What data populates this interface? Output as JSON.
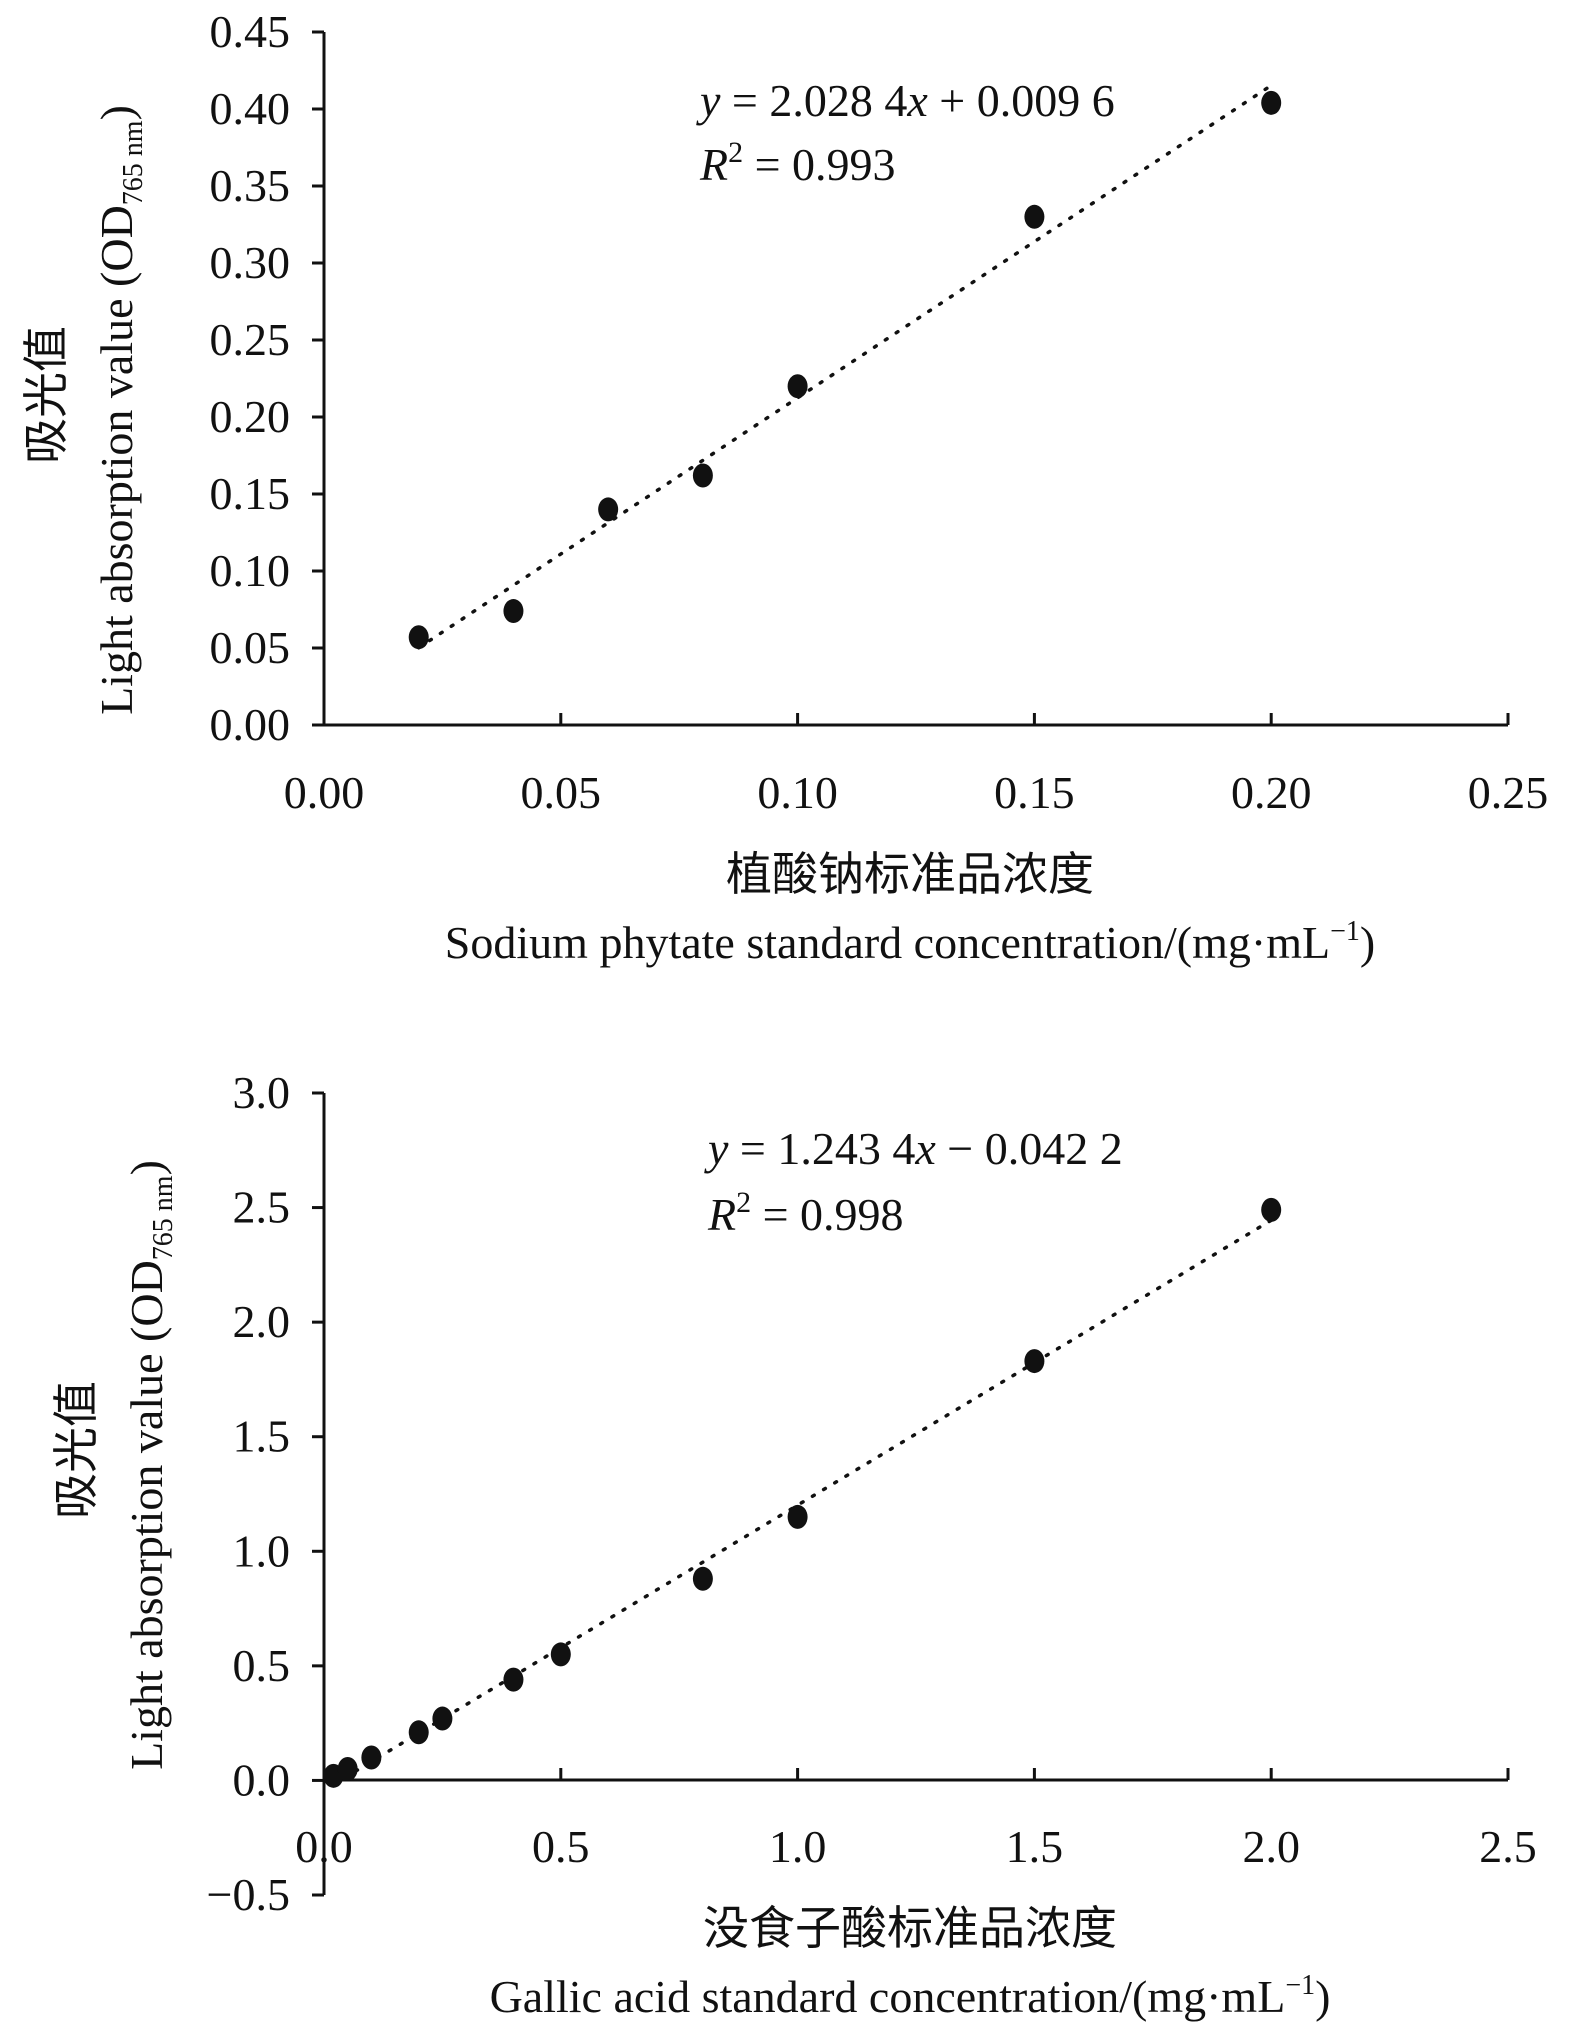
{
  "chart_data": [
    {
      "type": "scatter",
      "title": "",
      "ylabel_cn": "吸光值",
      "ylabel_en_main": "Light absorption value (OD",
      "ylabel_en_sub": "765 nm",
      "ylabel_en_close": ")",
      "xlabel_cn": "植酸钠标准品浓度",
      "xlabel_en_main": "Sodium phytate standard concentration/(mg·mL",
      "xlabel_en_sup": "−1",
      "xlabel_en_close": ")",
      "xlim": [
        0,
        0.25
      ],
      "ylim": [
        0,
        0.45
      ],
      "xticks": [
        "0.00",
        "0.05",
        "0.10",
        "0.15",
        "0.20",
        "0.25"
      ],
      "yticks": [
        "0.00",
        "0.05",
        "0.10",
        "0.15",
        "0.20",
        "0.25",
        "0.30",
        "0.35",
        "0.40",
        "0.45"
      ],
      "x": [
        0.02,
        0.04,
        0.06,
        0.08,
        0.1,
        0.15,
        0.2
      ],
      "y": [
        0.057,
        0.074,
        0.14,
        0.162,
        0.22,
        0.33,
        0.404
      ],
      "trendline": {
        "slope": 2.0284,
        "intercept": 0.0096,
        "style": "dotted"
      },
      "equation": {
        "y_var": "y",
        "rhs_a": " = 2.028 4",
        "x_var": "x",
        "rhs_b": " + 0.009 6"
      },
      "r2": {
        "r_var": "R",
        "sup": "2",
        "value": " = 0.993"
      },
      "marker_color": "#111111"
    },
    {
      "type": "scatter",
      "title": "",
      "ylabel_cn": "吸光值",
      "ylabel_en_main": "Light absorption value (OD",
      "ylabel_en_sub": "765 nm",
      "ylabel_en_close": ")",
      "xlabel_cn": "没食子酸标准品浓度",
      "xlabel_en_main": "Gallic acid standard concentration/(mg·mL",
      "xlabel_en_sup": "−1",
      "xlabel_en_close": ")",
      "xlim": [
        0,
        2.5
      ],
      "ylim": [
        -0.5,
        3.0
      ],
      "xticks": [
        "0.0",
        "0.5",
        "1.0",
        "1.5",
        "2.0",
        "2.5"
      ],
      "yticks": [
        "−0.5",
        "0.0",
        "0.5",
        "1.0",
        "1.5",
        "2.0",
        "2.5",
        "3.0"
      ],
      "x": [
        0.02,
        0.05,
        0.1,
        0.2,
        0.25,
        0.4,
        0.5,
        0.8,
        1.0,
        1.5,
        2.0
      ],
      "y": [
        0.02,
        0.05,
        0.1,
        0.21,
        0.27,
        0.44,
        0.55,
        0.88,
        1.15,
        1.83,
        2.49
      ],
      "trendline": {
        "slope": 1.2434,
        "intercept": -0.0422,
        "style": "dotted"
      },
      "equation": {
        "y_var": "y",
        "rhs_a": " = 1.243 4",
        "x_var": "x",
        "rhs_b": " − 0.042 2"
      },
      "r2": {
        "r_var": "R",
        "sup": "2",
        "value": " = 0.998"
      },
      "marker_color": "#111111"
    }
  ]
}
